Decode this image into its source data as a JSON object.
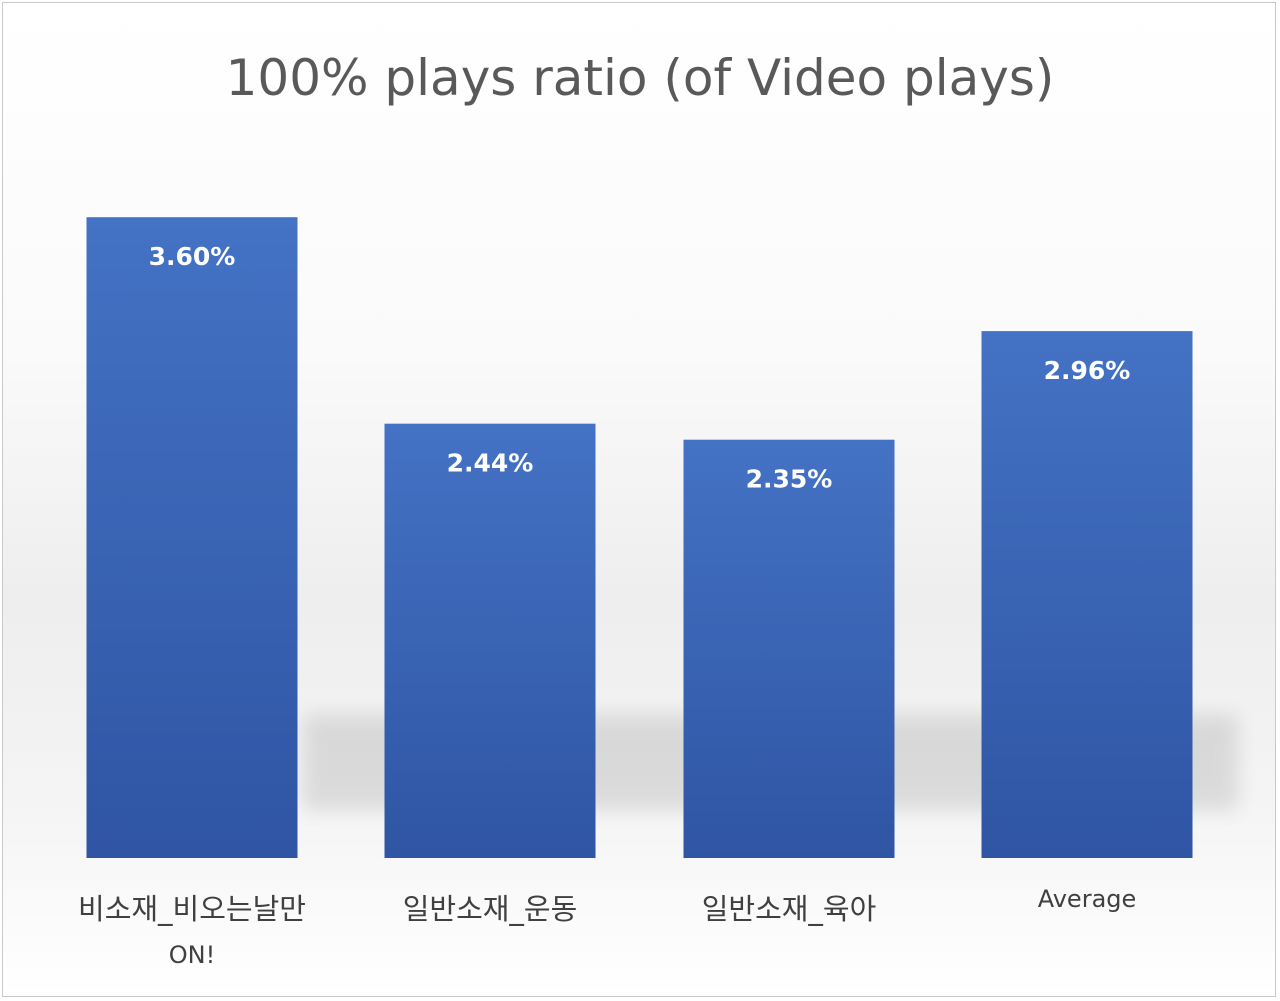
{
  "chart_data": {
    "type": "bar",
    "title": "100% plays ratio (of Video plays)",
    "categories": [
      [
        "비소재_비오는날만",
        "ON!"
      ],
      [
        "일반소재_운동"
      ],
      [
        "일반소재_육아"
      ],
      [
        "Average"
      ]
    ],
    "values": [
      3.6,
      2.44,
      2.35,
      2.96
    ],
    "data_labels": [
      "3.60%",
      "2.44%",
      "2.35%",
      "2.96%"
    ],
    "ylim": [
      0,
      4.0
    ],
    "grid": false,
    "legend": "none",
    "xlabel": "",
    "ylabel": "",
    "colors": {
      "bar_top": "#4472C4",
      "bar_bottom": "#2F55A4",
      "title": "#595959",
      "axis_text": "#404040",
      "data_label": "#ffffff"
    }
  }
}
